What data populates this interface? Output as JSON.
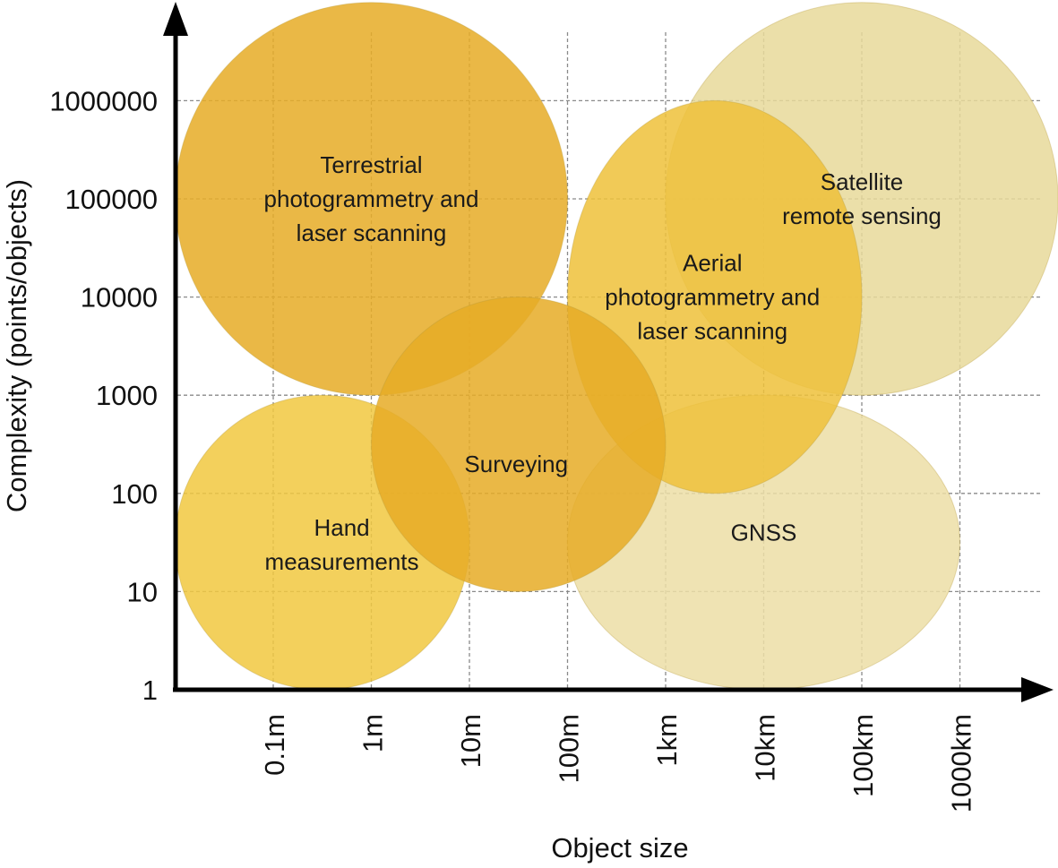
{
  "chart_data": {
    "type": "bubble-diagram",
    "xlabel": "Object size",
    "ylabel": "Complexity (points/objects)",
    "x_scale": "log",
    "y_scale": "log",
    "x_ticks": [
      "0.1m",
      "1m",
      "10m",
      "100m",
      "1km",
      "10km",
      "100km",
      "1000km"
    ],
    "y_ticks": [
      "1",
      "10",
      "100",
      "1000",
      "10000",
      "100000",
      "1000000"
    ],
    "grid": true,
    "regions": [
      {
        "name": "Satellite remote sensing",
        "lines": [
          "Satellite",
          "remote sensing"
        ],
        "x_center": "100km",
        "y_center": 100000,
        "x_range": [
          "1km",
          "10000km"
        ],
        "y_range": [
          1000,
          10000000
        ],
        "color": "#e8d99a"
      },
      {
        "name": "GNSS",
        "lines": [
          "GNSS"
        ],
        "x_center": "10km",
        "y_center": 40,
        "x_range": [
          "100m",
          "1000km"
        ],
        "y_range": [
          1,
          1000
        ],
        "color": "#ecdea6"
      },
      {
        "name": "Terrestrial photogrammetry and laser scanning",
        "lines": [
          "Terrestrial",
          "photogrammetry and",
          "laser scanning"
        ],
        "x_center": "1m",
        "y_center": 100000,
        "x_range": [
          "0.01m",
          "100m"
        ],
        "y_range": [
          1000,
          10000000
        ],
        "color": "#e6ab26"
      },
      {
        "name": "Aerial photogrammetry and laser scanning",
        "lines": [
          "Aerial",
          "photogrammetry and",
          "laser scanning"
        ],
        "x_center": "3km",
        "y_center": 10000,
        "x_range": [
          "100m",
          "100km"
        ],
        "y_range": [
          100,
          1000000
        ],
        "color": "#efc13a"
      },
      {
        "name": "Hand measurements",
        "lines": [
          "Hand",
          "measurements"
        ],
        "x_center": "0.5m",
        "y_center": 30,
        "x_range": [
          "0.01m",
          "10m"
        ],
        "y_range": [
          1,
          1000
        ],
        "color": "#f1c840"
      },
      {
        "name": "Surveying",
        "lines": [
          "Surveying"
        ],
        "x_center": "30m",
        "y_center": 200,
        "x_range": [
          "1m",
          "1km"
        ],
        "y_range": [
          10,
          10000
        ],
        "color": "#e6ab26"
      }
    ]
  }
}
